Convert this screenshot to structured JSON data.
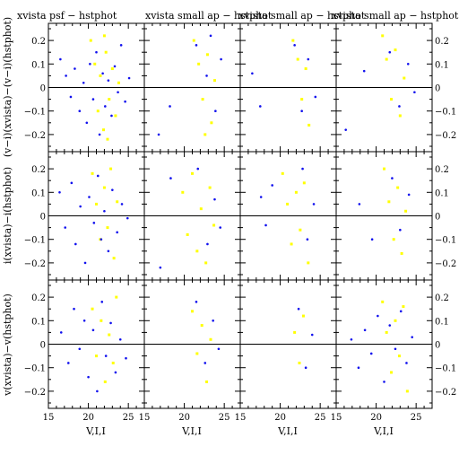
{
  "figure": {
    "panel_titles": [
      "xvista psf − hstphot",
      "xvista small ap − hstphot",
      "xvista small ap − hstphot",
      "xvista small ap − hstphot"
    ],
    "row_ylabels": [
      "(v−i)(xvista)−(v−i)(hstphot)",
      "i(xvista)−i(hstphot)",
      "v(xvista)−v(hstphot)"
    ],
    "xlabel": "V,I,I"
  },
  "chart_data": {
    "type": "scatter",
    "layout": "3 rows x 4 columns of scatter panels",
    "xlim": [
      15,
      27
    ],
    "ylim": [
      -0.25,
      0.25
    ],
    "x_ticks": [
      15,
      20,
      25
    ],
    "y_ticks": [
      -0.2,
      -0.1,
      0,
      0.1,
      0.2
    ],
    "y_tick_labels": [
      "−0.2",
      "−0.1",
      "0",
      "0.1",
      "0.2"
    ],
    "zero_line": 0,
    "series_colors": {
      "stars": "#1111ee",
      "yellow_points": "#ffff00"
    },
    "panels": [
      {
        "row": 0,
        "col": 0,
        "blue": [
          [
            16.5,
            0.12
          ],
          [
            17.2,
            0.05
          ],
          [
            17.8,
            -0.04
          ],
          [
            18.3,
            0.08
          ],
          [
            18.9,
            -0.1
          ],
          [
            19.4,
            0.02
          ],
          [
            19.8,
            -0.15
          ],
          [
            20.2,
            0.1
          ],
          [
            20.6,
            -0.05
          ],
          [
            21.0,
            0.15
          ],
          [
            21.4,
            -0.2
          ],
          [
            21.8,
            0.06
          ],
          [
            22.1,
            -0.08
          ],
          [
            22.5,
            0.03
          ],
          [
            22.9,
            -0.12
          ],
          [
            23.3,
            0.09
          ],
          [
            23.7,
            -0.02
          ],
          [
            24.1,
            0.18
          ],
          [
            24.6,
            -0.06
          ],
          [
            25.1,
            0.04
          ]
        ],
        "yellow": [
          [
            20.3,
            0.2
          ],
          [
            20.8,
            0.1
          ],
          [
            21.2,
            -0.1
          ],
          [
            21.5,
            0.05
          ],
          [
            21.9,
            -0.18
          ],
          [
            22.2,
            0.15
          ],
          [
            22.6,
            -0.05
          ],
          [
            23.0,
            0.08
          ],
          [
            23.4,
            -0.12
          ],
          [
            23.8,
            0.02
          ],
          [
            22.0,
            0.22
          ],
          [
            22.4,
            -0.22
          ]
        ]
      },
      {
        "row": 0,
        "col": 1,
        "blue": [
          [
            16.8,
            -0.2
          ],
          [
            18.2,
            -0.08
          ],
          [
            21.5,
            0.18
          ],
          [
            22.8,
            0.05
          ],
          [
            23.9,
            -0.1
          ],
          [
            24.6,
            0.12
          ],
          [
            23.3,
            0.22
          ]
        ],
        "yellow": [
          [
            21.2,
            0.2
          ],
          [
            21.8,
            0.1
          ],
          [
            22.3,
            -0.05
          ],
          [
            22.9,
            0.14
          ],
          [
            23.4,
            -0.15
          ],
          [
            23.8,
            0.03
          ],
          [
            22.6,
            -0.2
          ]
        ]
      },
      {
        "row": 0,
        "col": 2,
        "blue": [
          [
            16.5,
            0.06
          ],
          [
            17.5,
            -0.08
          ],
          [
            21.8,
            0.18
          ],
          [
            22.7,
            -0.1
          ],
          [
            23.5,
            0.12
          ],
          [
            24.4,
            -0.04
          ]
        ],
        "yellow": [
          [
            21.6,
            0.2
          ],
          [
            22.2,
            0.12
          ],
          [
            22.7,
            -0.05
          ],
          [
            23.2,
            0.08
          ],
          [
            23.6,
            -0.16
          ]
        ]
      },
      {
        "row": 0,
        "col": 3,
        "blue": [
          [
            16.2,
            -0.18
          ],
          [
            18.5,
            0.07
          ],
          [
            21.7,
            0.15
          ],
          [
            22.9,
            -0.08
          ],
          [
            24.0,
            0.1
          ],
          [
            24.8,
            -0.02
          ]
        ],
        "yellow": [
          [
            20.8,
            0.22
          ],
          [
            21.3,
            0.12
          ],
          [
            21.9,
            -0.05
          ],
          [
            22.4,
            0.16
          ],
          [
            23.0,
            -0.12
          ],
          [
            23.5,
            0.04
          ]
        ]
      },
      {
        "row": 1,
        "col": 0,
        "blue": [
          [
            16.4,
            0.1
          ],
          [
            17.1,
            -0.05
          ],
          [
            17.9,
            0.14
          ],
          [
            18.4,
            -0.12
          ],
          [
            19.0,
            0.04
          ],
          [
            19.6,
            -0.2
          ],
          [
            20.1,
            0.08
          ],
          [
            20.7,
            -0.03
          ],
          [
            21.2,
            0.17
          ],
          [
            21.6,
            -0.1
          ],
          [
            22.0,
            0.02
          ],
          [
            22.5,
            -0.15
          ],
          [
            23.0,
            0.11
          ],
          [
            23.6,
            -0.07
          ],
          [
            24.2,
            0.05
          ],
          [
            24.9,
            -0.01
          ]
        ],
        "yellow": [
          [
            20.5,
            0.18
          ],
          [
            21.0,
            0.05
          ],
          [
            21.5,
            -0.1
          ],
          [
            22.0,
            0.12
          ],
          [
            22.4,
            -0.05
          ],
          [
            22.8,
            0.2
          ],
          [
            23.2,
            -0.18
          ],
          [
            23.6,
            0.06
          ]
        ]
      },
      {
        "row": 1,
        "col": 1,
        "blue": [
          [
            17.0,
            -0.22
          ],
          [
            18.3,
            0.16
          ],
          [
            21.7,
            0.2
          ],
          [
            22.9,
            -0.12
          ],
          [
            23.8,
            0.07
          ],
          [
            24.5,
            -0.05
          ]
        ],
        "yellow": [
          [
            19.8,
            0.1
          ],
          [
            20.4,
            -0.08
          ],
          [
            21.0,
            0.18
          ],
          [
            21.6,
            -0.15
          ],
          [
            22.1,
            0.03
          ],
          [
            22.7,
            -0.2
          ],
          [
            23.2,
            0.12
          ],
          [
            23.7,
            -0.04
          ]
        ]
      },
      {
        "row": 1,
        "col": 2,
        "blue": [
          [
            17.6,
            0.08
          ],
          [
            18.2,
            -0.04
          ],
          [
            19.0,
            0.13
          ],
          [
            22.8,
            0.2
          ],
          [
            23.4,
            -0.1
          ],
          [
            24.2,
            0.05
          ]
        ],
        "yellow": [
          [
            20.3,
            0.18
          ],
          [
            20.9,
            0.05
          ],
          [
            21.4,
            -0.12
          ],
          [
            22.0,
            0.1
          ],
          [
            22.5,
            -0.06
          ],
          [
            23.0,
            0.14
          ],
          [
            23.5,
            -0.2
          ]
        ]
      },
      {
        "row": 1,
        "col": 3,
        "blue": [
          [
            17.9,
            0.05
          ],
          [
            19.5,
            -0.1
          ],
          [
            22.0,
            0.16
          ],
          [
            23.0,
            -0.06
          ],
          [
            24.1,
            0.09
          ]
        ],
        "yellow": [
          [
            21.0,
            0.2
          ],
          [
            21.6,
            0.06
          ],
          [
            22.2,
            -0.1
          ],
          [
            22.7,
            0.12
          ],
          [
            23.2,
            -0.16
          ],
          [
            23.7,
            0.02
          ]
        ]
      },
      {
        "row": 2,
        "col": 0,
        "blue": [
          [
            16.6,
            0.05
          ],
          [
            17.5,
            -0.08
          ],
          [
            18.2,
            0.15
          ],
          [
            18.9,
            -0.02
          ],
          [
            19.5,
            0.1
          ],
          [
            20.0,
            -0.14
          ],
          [
            20.6,
            0.06
          ],
          [
            21.1,
            -0.2
          ],
          [
            21.7,
            0.18
          ],
          [
            22.2,
            -0.05
          ],
          [
            22.8,
            0.09
          ],
          [
            23.4,
            -0.12
          ],
          [
            24.0,
            0.02
          ],
          [
            24.7,
            -0.06
          ]
        ],
        "yellow": [
          [
            20.5,
            0.15
          ],
          [
            21.0,
            -0.05
          ],
          [
            21.6,
            0.1
          ],
          [
            22.1,
            -0.16
          ],
          [
            22.6,
            0.04
          ],
          [
            23.1,
            -0.08
          ],
          [
            23.5,
            0.2
          ]
        ]
      },
      {
        "row": 2,
        "col": 1,
        "blue": [
          [
            21.5,
            0.18
          ],
          [
            22.6,
            -0.08
          ],
          [
            23.6,
            0.1
          ],
          [
            24.3,
            -0.02
          ]
        ],
        "yellow": [
          [
            21.0,
            0.14
          ],
          [
            21.6,
            -0.04
          ],
          [
            22.2,
            0.08
          ],
          [
            22.8,
            -0.16
          ],
          [
            23.3,
            0.02
          ]
        ]
      },
      {
        "row": 2,
        "col": 2,
        "blue": [
          [
            22.3,
            0.15
          ],
          [
            23.2,
            -0.1
          ],
          [
            24.0,
            0.04
          ]
        ],
        "yellow": [
          [
            21.8,
            0.05
          ],
          [
            22.4,
            -0.08
          ],
          [
            22.9,
            0.12
          ]
        ]
      },
      {
        "row": 2,
        "col": 3,
        "blue": [
          [
            16.9,
            0.02
          ],
          [
            17.8,
            -0.1
          ],
          [
            18.6,
            0.06
          ],
          [
            19.4,
            -0.04
          ],
          [
            20.2,
            0.12
          ],
          [
            21.0,
            -0.16
          ],
          [
            21.7,
            0.08
          ],
          [
            22.4,
            -0.02
          ],
          [
            23.1,
            0.14
          ],
          [
            23.8,
            -0.08
          ],
          [
            24.5,
            0.03
          ]
        ],
        "yellow": [
          [
            20.8,
            0.18
          ],
          [
            21.3,
            0.05
          ],
          [
            21.9,
            -0.12
          ],
          [
            22.4,
            0.1
          ],
          [
            22.9,
            -0.05
          ],
          [
            23.4,
            0.16
          ],
          [
            23.9,
            -0.2
          ]
        ]
      }
    ]
  }
}
